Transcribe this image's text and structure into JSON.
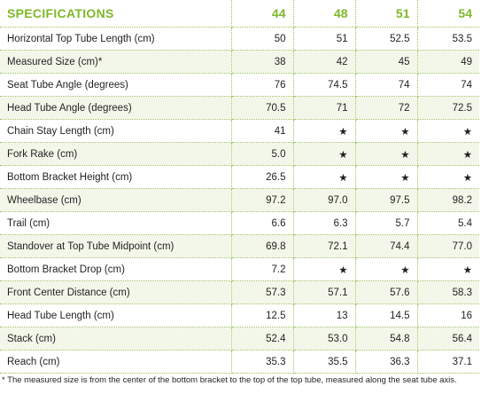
{
  "table": {
    "header": [
      "SPECIFICATIONS",
      "44",
      "48",
      "51",
      "54"
    ],
    "rows": [
      [
        "Horizontal Top Tube Length (cm)",
        "50",
        "51",
        "52.5",
        "53.5"
      ],
      [
        "Measured Size (cm)*",
        "38",
        "42",
        "45",
        "49"
      ],
      [
        "Seat Tube Angle (degrees)",
        "76",
        "74.5",
        "74",
        "74"
      ],
      [
        "Head Tube Angle (degrees)",
        "70.5",
        "71",
        "72",
        "72.5"
      ],
      [
        "Chain Stay Length (cm)",
        "41",
        "★",
        "★",
        "★"
      ],
      [
        "Fork Rake (cm)",
        "5.0",
        "★",
        "★",
        "★"
      ],
      [
        "Bottom Bracket Height (cm)",
        "26.5",
        "★",
        "★",
        "★"
      ],
      [
        "Wheelbase (cm)",
        "97.2",
        "97.0",
        "97.5",
        "98.2"
      ],
      [
        "Trail (cm)",
        "6.6",
        "6.3",
        "5.7",
        "5.4"
      ],
      [
        "Standover at Top Tube Midpoint (cm)",
        "69.8",
        "72.1",
        "74.4",
        "77.0"
      ],
      [
        "Bottom Bracket Drop (cm)",
        "7.2",
        "★",
        "★",
        "★"
      ],
      [
        "Front Center Distance (cm)",
        "57.3",
        "57.1",
        "57.6",
        "58.3"
      ],
      [
        "Head Tube Length (cm)",
        "12.5",
        "13",
        "14.5",
        "16"
      ],
      [
        "Stack (cm)",
        "52.4",
        "53.0",
        "54.8",
        "56.4"
      ],
      [
        "Reach (cm)",
        "35.3",
        "35.5",
        "36.3",
        "37.1"
      ]
    ],
    "footnote": "* The measured size is from the center of the bottom bracket to the top of the top tube, measured along the seat tube axis."
  }
}
